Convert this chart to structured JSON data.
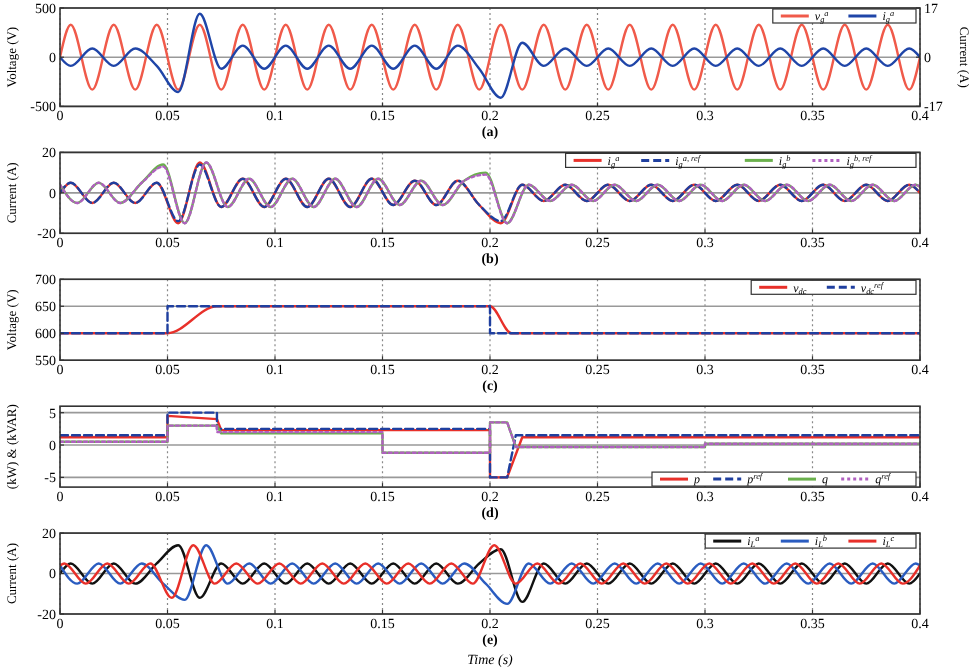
{
  "chart_data": [
    {
      "type": "line",
      "xlabel": "(a)",
      "ylabel": "Voltage (V)",
      "y2label": "Current (A)",
      "xlim": [
        0,
        0.4
      ],
      "xticks": [
        0,
        0.05,
        0.1,
        0.15,
        0.2,
        0.25,
        0.3,
        0.35,
        0.4
      ],
      "ylim": [
        -500,
        500
      ],
      "yticks": [
        -500,
        0,
        500
      ],
      "y2lim": [
        -17,
        17
      ],
      "y2ticks": [
        -17,
        0,
        17
      ],
      "grid": true,
      "legend": "top right",
      "x": [
        0,
        0.005,
        0.015,
        0.025,
        0.035,
        0.045,
        0.055,
        0.065,
        0.075,
        0.085,
        0.095,
        0.105,
        0.115,
        0.125,
        0.135,
        0.145,
        0.155,
        0.165,
        0.175,
        0.185,
        0.195,
        0.205,
        0.215,
        0.225,
        0.235,
        0.245,
        0.255,
        0.265,
        0.275,
        0.285,
        0.295,
        0.305,
        0.315,
        0.325,
        0.335,
        0.345,
        0.355,
        0.365,
        0.375,
        0.385,
        0.395,
        0.4
      ],
      "series": [
        {
          "name": "v$_{g}$$^{a}$",
          "color": "#f05a4a",
          "values": [
            0,
            330,
            -330,
            330,
            -330,
            330,
            -330,
            330,
            -330,
            330,
            -330,
            330,
            -330,
            330,
            -330,
            330,
            -330,
            330,
            -330,
            330,
            -330,
            330,
            -330,
            330,
            -330,
            330,
            -330,
            330,
            -330,
            330,
            -330,
            330,
            -330,
            330,
            -330,
            330,
            -330,
            330,
            -330,
            330,
            -330,
            0
          ]
        },
        {
          "name": "i$_{g}$$^{a}$",
          "color": "#1f45a8",
          "axis": "y2",
          "values": [
            0,
            -3,
            3,
            -3,
            3,
            -3,
            -12,
            15,
            -4,
            4,
            -4,
            4,
            -4,
            4,
            -4,
            4,
            -4,
            4,
            -4,
            4,
            -4,
            -14,
            5,
            -3,
            3,
            -3,
            3,
            -3,
            3,
            -3,
            3,
            -3,
            3,
            -3,
            3,
            -3,
            3,
            -3,
            3,
            -3,
            3,
            0
          ]
        }
      ]
    },
    {
      "type": "line",
      "xlabel": "(b)",
      "ylabel": "Current (A)",
      "xlim": [
        0,
        0.4
      ],
      "xticks": [
        0,
        0.05,
        0.1,
        0.15,
        0.2,
        0.25,
        0.3,
        0.35,
        0.4
      ],
      "ylim": [
        -20,
        20
      ],
      "yticks": [
        -20,
        0,
        20
      ],
      "grid": true,
      "legend": "top right",
      "x": [
        0,
        0.005,
        0.015,
        0.025,
        0.035,
        0.045,
        0.055,
        0.065,
        0.075,
        0.085,
        0.095,
        0.105,
        0.115,
        0.125,
        0.135,
        0.145,
        0.155,
        0.165,
        0.175,
        0.185,
        0.195,
        0.205,
        0.215,
        0.225,
        0.235,
        0.245,
        0.255,
        0.265,
        0.275,
        0.285,
        0.295,
        0.305,
        0.315,
        0.325,
        0.335,
        0.345,
        0.355,
        0.365,
        0.375,
        0.385,
        0.395,
        0.4
      ],
      "series": [
        {
          "name": "i$_{g}$$^{a}$",
          "color": "#e8302a",
          "values": [
            0,
            5,
            -5,
            5,
            -5,
            5,
            -15,
            15,
            -7,
            7,
            -7,
            7,
            -7,
            7,
            -7,
            7,
            -6,
            6,
            -6,
            6,
            -6,
            -15,
            4,
            -4,
            4,
            -4,
            4,
            -4,
            4,
            -4,
            4,
            -4,
            4,
            -4,
            4,
            -4,
            4,
            -4,
            4,
            -4,
            4,
            0
          ]
        },
        {
          "name": "i$_{g}$$^{a, ref}$",
          "color": "#1f3f9f",
          "line_style": "dashed",
          "values": [
            0,
            5,
            -5,
            5,
            -5,
            5,
            -14,
            14,
            -7,
            7,
            -7,
            7,
            -7,
            7,
            -7,
            7,
            -6,
            6,
            -6,
            6,
            -6,
            -14,
            4,
            -4,
            4,
            -4,
            4,
            -4,
            4,
            -4,
            4,
            -4,
            4,
            -4,
            4,
            -4,
            4,
            -4,
            4,
            -4,
            4,
            0
          ]
        },
        {
          "name": "i$_{g}$$^{b}$",
          "color": "#6ab04c",
          "x": [
            0,
            0.008,
            0.018,
            0.028,
            0.038,
            0.048,
            0.058,
            0.068,
            0.078,
            0.088,
            0.098,
            0.108,
            0.118,
            0.128,
            0.138,
            0.148,
            0.158,
            0.168,
            0.178,
            0.188,
            0.198,
            0.208,
            0.218,
            0.228,
            0.238,
            0.248,
            0.258,
            0.268,
            0.278,
            0.288,
            0.298,
            0.308,
            0.318,
            0.328,
            0.338,
            0.348,
            0.358,
            0.368,
            0.378,
            0.388,
            0.398,
            0.4
          ],
          "values": [
            4,
            -5,
            5,
            -5,
            5,
            14,
            -15,
            15,
            -7,
            7,
            -7,
            7,
            -7,
            7,
            -7,
            7,
            -6,
            6,
            -6,
            6,
            10,
            -15,
            4,
            -4,
            4,
            -4,
            4,
            -4,
            4,
            -4,
            4,
            -4,
            4,
            -4,
            4,
            -4,
            4,
            -4,
            4,
            -4,
            4,
            3
          ]
        },
        {
          "name": "i$_{g}$$^{b, ref}$",
          "color": "#b060c0",
          "line_style": "dotted",
          "x": [
            0,
            0.008,
            0.018,
            0.028,
            0.038,
            0.048,
            0.058,
            0.068,
            0.078,
            0.088,
            0.098,
            0.108,
            0.118,
            0.128,
            0.138,
            0.148,
            0.158,
            0.168,
            0.178,
            0.188,
            0.198,
            0.208,
            0.218,
            0.228,
            0.238,
            0.248,
            0.258,
            0.268,
            0.278,
            0.288,
            0.298,
            0.308,
            0.318,
            0.328,
            0.338,
            0.348,
            0.358,
            0.368,
            0.378,
            0.388,
            0.398,
            0.4
          ],
          "values": [
            4,
            -5,
            5,
            -5,
            5,
            13,
            -15,
            15,
            -7,
            7,
            -7,
            7,
            -7,
            7,
            -7,
            7,
            -6,
            6,
            -6,
            6,
            9,
            -15,
            4,
            -4,
            4,
            -4,
            4,
            -4,
            4,
            -4,
            4,
            -4,
            4,
            -4,
            4,
            -4,
            4,
            -4,
            4,
            -4,
            4,
            3
          ]
        }
      ]
    },
    {
      "type": "line",
      "xlabel": "(c)",
      "ylabel": "Voltage (V)",
      "xlim": [
        0,
        0.4
      ],
      "xticks": [
        0,
        0.05,
        0.1,
        0.15,
        0.2,
        0.25,
        0.3,
        0.35,
        0.4
      ],
      "ylim": [
        550,
        700
      ],
      "yticks": [
        550,
        600,
        650,
        700
      ],
      "grid": true,
      "legend": "top right",
      "series": [
        {
          "name": "v$_{dc}$",
          "color": "#e8302a",
          "x": [
            0,
            0.05,
            0.073,
            0.2,
            0.21,
            0.4
          ],
          "values": [
            600,
            600,
            650,
            650,
            600,
            600
          ]
        },
        {
          "name": "v$_{dc}$$^{ref}$",
          "color": "#1f3f9f",
          "line_style": "dashed",
          "x": [
            0,
            0.05,
            0.05,
            0.2,
            0.2,
            0.4
          ],
          "values": [
            600,
            600,
            650,
            650,
            600,
            600
          ]
        }
      ]
    },
    {
      "type": "line",
      "xlabel": "(d)",
      "ylabel": "(kW) & (kVAR)",
      "xlim": [
        0,
        0.4
      ],
      "xticks": [
        0,
        0.05,
        0.1,
        0.15,
        0.2,
        0.25,
        0.3,
        0.35,
        0.4
      ],
      "ylim": [
        -6.5,
        6
      ],
      "yticks": [
        -5,
        0,
        5
      ],
      "grid": true,
      "legend": "bottom right",
      "series": [
        {
          "name": "p",
          "color": "#e8302a",
          "x": [
            0,
            0.05,
            0.05,
            0.073,
            0.075,
            0.15,
            0.2,
            0.2,
            0.208,
            0.215,
            0.4
          ],
          "values": [
            1.2,
            1.2,
            4.5,
            4,
            2.3,
            2.3,
            2.3,
            -5,
            -5,
            1.2,
            1.2
          ]
        },
        {
          "name": "p$^{ref}$",
          "color": "#1f3f9f",
          "line_style": "dashed",
          "x": [
            0,
            0.05,
            0.05,
            0.073,
            0.073,
            0.2,
            0.2,
            0.208,
            0.212,
            0.4
          ],
          "values": [
            1.5,
            1.5,
            5,
            5,
            2.5,
            2.5,
            -5,
            -5,
            1.5,
            1.5
          ]
        },
        {
          "name": "q",
          "color": "#6ab04c",
          "x": [
            0,
            0.05,
            0.05,
            0.073,
            0.075,
            0.15,
            0.15,
            0.2,
            0.2,
            0.208,
            0.212,
            0.3,
            0.3,
            0.4
          ],
          "values": [
            0.5,
            0.5,
            3,
            3,
            1.8,
            1.8,
            -1.2,
            -1.2,
            3.5,
            3.5,
            -0.3,
            -0.3,
            0.2,
            0.2
          ]
        },
        {
          "name": "q$^{ref}$",
          "color": "#b060c0",
          "line_style": "dotted",
          "x": [
            0,
            0.05,
            0.05,
            0.073,
            0.073,
            0.15,
            0.15,
            0.2,
            0.2,
            0.208,
            0.212,
            0.3,
            0.3,
            0.4
          ],
          "values": [
            0.5,
            0.5,
            3,
            3,
            2,
            2,
            -1.2,
            -1.2,
            3.5,
            3.5,
            -0.3,
            -0.3,
            0.2,
            0.2
          ]
        }
      ]
    },
    {
      "type": "line",
      "xlabel": "(e)",
      "ylabel": "Current (A)",
      "annotations": [
        "Time (s)"
      ],
      "xlim": [
        0,
        0.4
      ],
      "xticks": [
        0,
        0.05,
        0.1,
        0.15,
        0.2,
        0.25,
        0.3,
        0.35,
        0.4
      ],
      "ylim": [
        -20,
        20
      ],
      "yticks": [
        -20,
        0,
        20
      ],
      "grid": true,
      "legend": "top right",
      "x": [
        0,
        0.005,
        0.015,
        0.025,
        0.035,
        0.045,
        0.055,
        0.065,
        0.075,
        0.085,
        0.095,
        0.105,
        0.115,
        0.125,
        0.135,
        0.145,
        0.155,
        0.165,
        0.175,
        0.185,
        0.195,
        0.205,
        0.215,
        0.225,
        0.235,
        0.245,
        0.255,
        0.265,
        0.275,
        0.285,
        0.295,
        0.305,
        0.315,
        0.325,
        0.335,
        0.345,
        0.355,
        0.365,
        0.375,
        0.385,
        0.395,
        0.4
      ],
      "series": [
        {
          "name": "i$_{L}$$^{a}$",
          "color": "#111111",
          "values": [
            0,
            5,
            -5,
            5,
            -5,
            5,
            14,
            -12,
            5,
            -5,
            5,
            -5,
            5,
            -5,
            5,
            -5,
            5,
            -5,
            5,
            -5,
            5,
            12,
            -14,
            5,
            -5,
            5,
            -5,
            5,
            -5,
            5,
            -5,
            5,
            -5,
            5,
            -5,
            5,
            -5,
            5,
            -5,
            5,
            -5,
            0
          ]
        },
        {
          "name": "i$_{L}$$^{b}$",
          "color": "#2a5cc0",
          "x": [
            0,
            0.008,
            0.018,
            0.028,
            0.038,
            0.048,
            0.058,
            0.068,
            0.078,
            0.088,
            0.098,
            0.108,
            0.118,
            0.128,
            0.138,
            0.148,
            0.158,
            0.168,
            0.178,
            0.188,
            0.198,
            0.208,
            0.218,
            0.228,
            0.238,
            0.248,
            0.258,
            0.268,
            0.278,
            0.288,
            0.298,
            0.308,
            0.318,
            0.328,
            0.338,
            0.348,
            0.358,
            0.368,
            0.378,
            0.388,
            0.398,
            0.4
          ],
          "values": [
            4,
            -5,
            5,
            -5,
            5,
            -5,
            -13,
            14,
            -5,
            5,
            -5,
            5,
            -5,
            5,
            -5,
            5,
            -5,
            5,
            -5,
            5,
            -5,
            -15,
            5,
            -5,
            5,
            -5,
            5,
            -5,
            5,
            -5,
            5,
            -5,
            5,
            -5,
            5,
            -5,
            5,
            -5,
            5,
            -5,
            5,
            4
          ]
        },
        {
          "name": "i$_{L}$$^{c}$",
          "color": "#e8302a",
          "x": [
            0,
            0.002,
            0.012,
            0.022,
            0.032,
            0.042,
            0.052,
            0.062,
            0.072,
            0.082,
            0.092,
            0.102,
            0.112,
            0.122,
            0.132,
            0.142,
            0.152,
            0.162,
            0.172,
            0.182,
            0.192,
            0.202,
            0.212,
            0.222,
            0.232,
            0.242,
            0.252,
            0.262,
            0.272,
            0.282,
            0.292,
            0.302,
            0.312,
            0.322,
            0.332,
            0.342,
            0.352,
            0.362,
            0.372,
            0.382,
            0.392,
            0.4
          ],
          "values": [
            4,
            5,
            -5,
            5,
            -5,
            5,
            -12,
            14,
            -5,
            5,
            -5,
            5,
            -5,
            5,
            -5,
            5,
            -5,
            5,
            -5,
            5,
            -5,
            14,
            -5,
            5,
            -5,
            5,
            -5,
            5,
            -5,
            5,
            -5,
            5,
            -5,
            5,
            -5,
            5,
            -5,
            5,
            -5,
            5,
            -5,
            4
          ]
        }
      ]
    }
  ]
}
